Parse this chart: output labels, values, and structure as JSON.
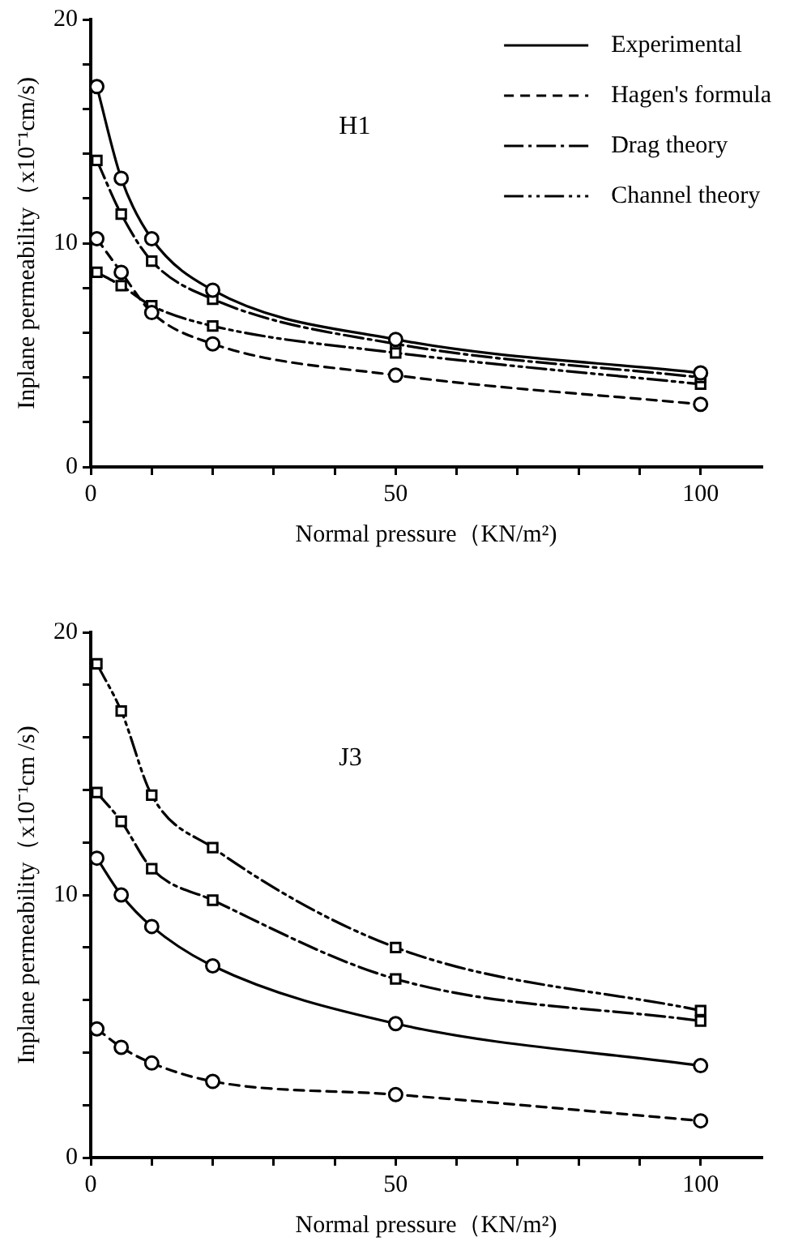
{
  "chart_data": [
    {
      "type": "line",
      "annotations": [
        "H1"
      ],
      "xlabel": "Normal pressure（KN/m²)",
      "ylabel": "Inplane permeability（x10⁻¹cm/s)",
      "x": [
        1,
        5,
        10,
        20,
        50,
        100
      ],
      "series": [
        {
          "name": "Experimental",
          "color": "#000000",
          "values": [
            17.0,
            12.9,
            10.2,
            7.9,
            5.7,
            4.2
          ],
          "line_style": "solid",
          "marker": "circle"
        },
        {
          "name": "Hagen's formula",
          "color": "#000000",
          "values": [
            10.2,
            8.7,
            6.9,
            5.5,
            4.1,
            2.8
          ],
          "line_style": "dashed",
          "marker": "circle"
        },
        {
          "name": "Drag theory",
          "color": "#000000",
          "values": [
            13.7,
            11.3,
            9.2,
            7.5,
            5.5,
            4.0
          ],
          "line_style": "dashdot",
          "marker": "square"
        },
        {
          "name": "Channel theory",
          "color": "#000000",
          "values": [
            8.7,
            8.1,
            7.2,
            6.3,
            5.1,
            3.7
          ],
          "line_style": "dashdotdot",
          "marker": "square"
        }
      ],
      "xlim": [
        0,
        110
      ],
      "ylim": [
        0,
        20
      ],
      "xticks": [
        0,
        {
          "value": 10,
          "label": null
        },
        {
          "value": 20,
          "label": null
        },
        {
          "value": 30,
          "label": null
        },
        {
          "value": 40,
          "label": null
        },
        50,
        {
          "value": 60,
          "label": null
        },
        {
          "value": 70,
          "label": null
        },
        {
          "value": 80,
          "label": null
        },
        {
          "value": 90,
          "label": null
        },
        100
      ],
      "yticks": [
        0,
        {
          "value": 2,
          "label": null
        },
        {
          "value": 4,
          "label": null
        },
        {
          "value": 6,
          "label": null
        },
        {
          "value": 8,
          "label": null
        },
        10,
        {
          "value": 12,
          "label": null
        },
        {
          "value": 14,
          "label": null
        },
        {
          "value": 16,
          "label": null
        },
        {
          "value": 18,
          "label": null
        },
        20
      ],
      "grid": false,
      "legend": "top right"
    },
    {
      "type": "line",
      "annotations": [
        "J3"
      ],
      "xlabel": "Normal pressure（KN/m²)",
      "ylabel": "Inplane permeability（x10⁻¹cm /s)",
      "x": [
        1,
        5,
        10,
        20,
        50,
        100
      ],
      "series": [
        {
          "color": "#000000",
          "values": [
            11.4,
            10.0,
            8.8,
            7.3,
            5.1,
            3.5
          ],
          "line_style": "solid",
          "marker": "circle"
        },
        {
          "color": "#000000",
          "values": [
            4.9,
            4.2,
            3.6,
            2.9,
            2.4,
            1.4
          ],
          "line_style": "dashed",
          "marker": "circle"
        },
        {
          "color": "#000000",
          "values": [
            13.9,
            12.8,
            11.0,
            9.8,
            6.8,
            5.2
          ],
          "line_style": "dashdot",
          "marker": "square"
        },
        {
          "color": "#000000",
          "values": [
            18.8,
            17.0,
            13.8,
            11.8,
            8.0,
            5.6
          ],
          "line_style": "dashdotdot",
          "marker": "square"
        }
      ],
      "xlim": [
        0,
        110
      ],
      "ylim": [
        0,
        20
      ],
      "xticks": [
        0,
        {
          "value": 10,
          "label": null
        },
        {
          "value": 20,
          "label": null
        },
        {
          "value": 30,
          "label": null
        },
        {
          "value": 40,
          "label": null
        },
        50,
        {
          "value": 60,
          "label": null
        },
        {
          "value": 70,
          "label": null
        },
        {
          "value": 80,
          "label": null
        },
        {
          "value": 90,
          "label": null
        },
        100
      ],
      "yticks": [
        0,
        {
          "value": 2,
          "label": null
        },
        {
          "value": 4,
          "label": null
        },
        {
          "value": 6,
          "label": null
        },
        {
          "value": 8,
          "label": null
        },
        10,
        {
          "value": 12,
          "label": null
        },
        {
          "value": 14,
          "label": null
        },
        {
          "value": 16,
          "label": null
        },
        {
          "value": 18,
          "label": null
        },
        20
      ],
      "grid": false
    }
  ]
}
